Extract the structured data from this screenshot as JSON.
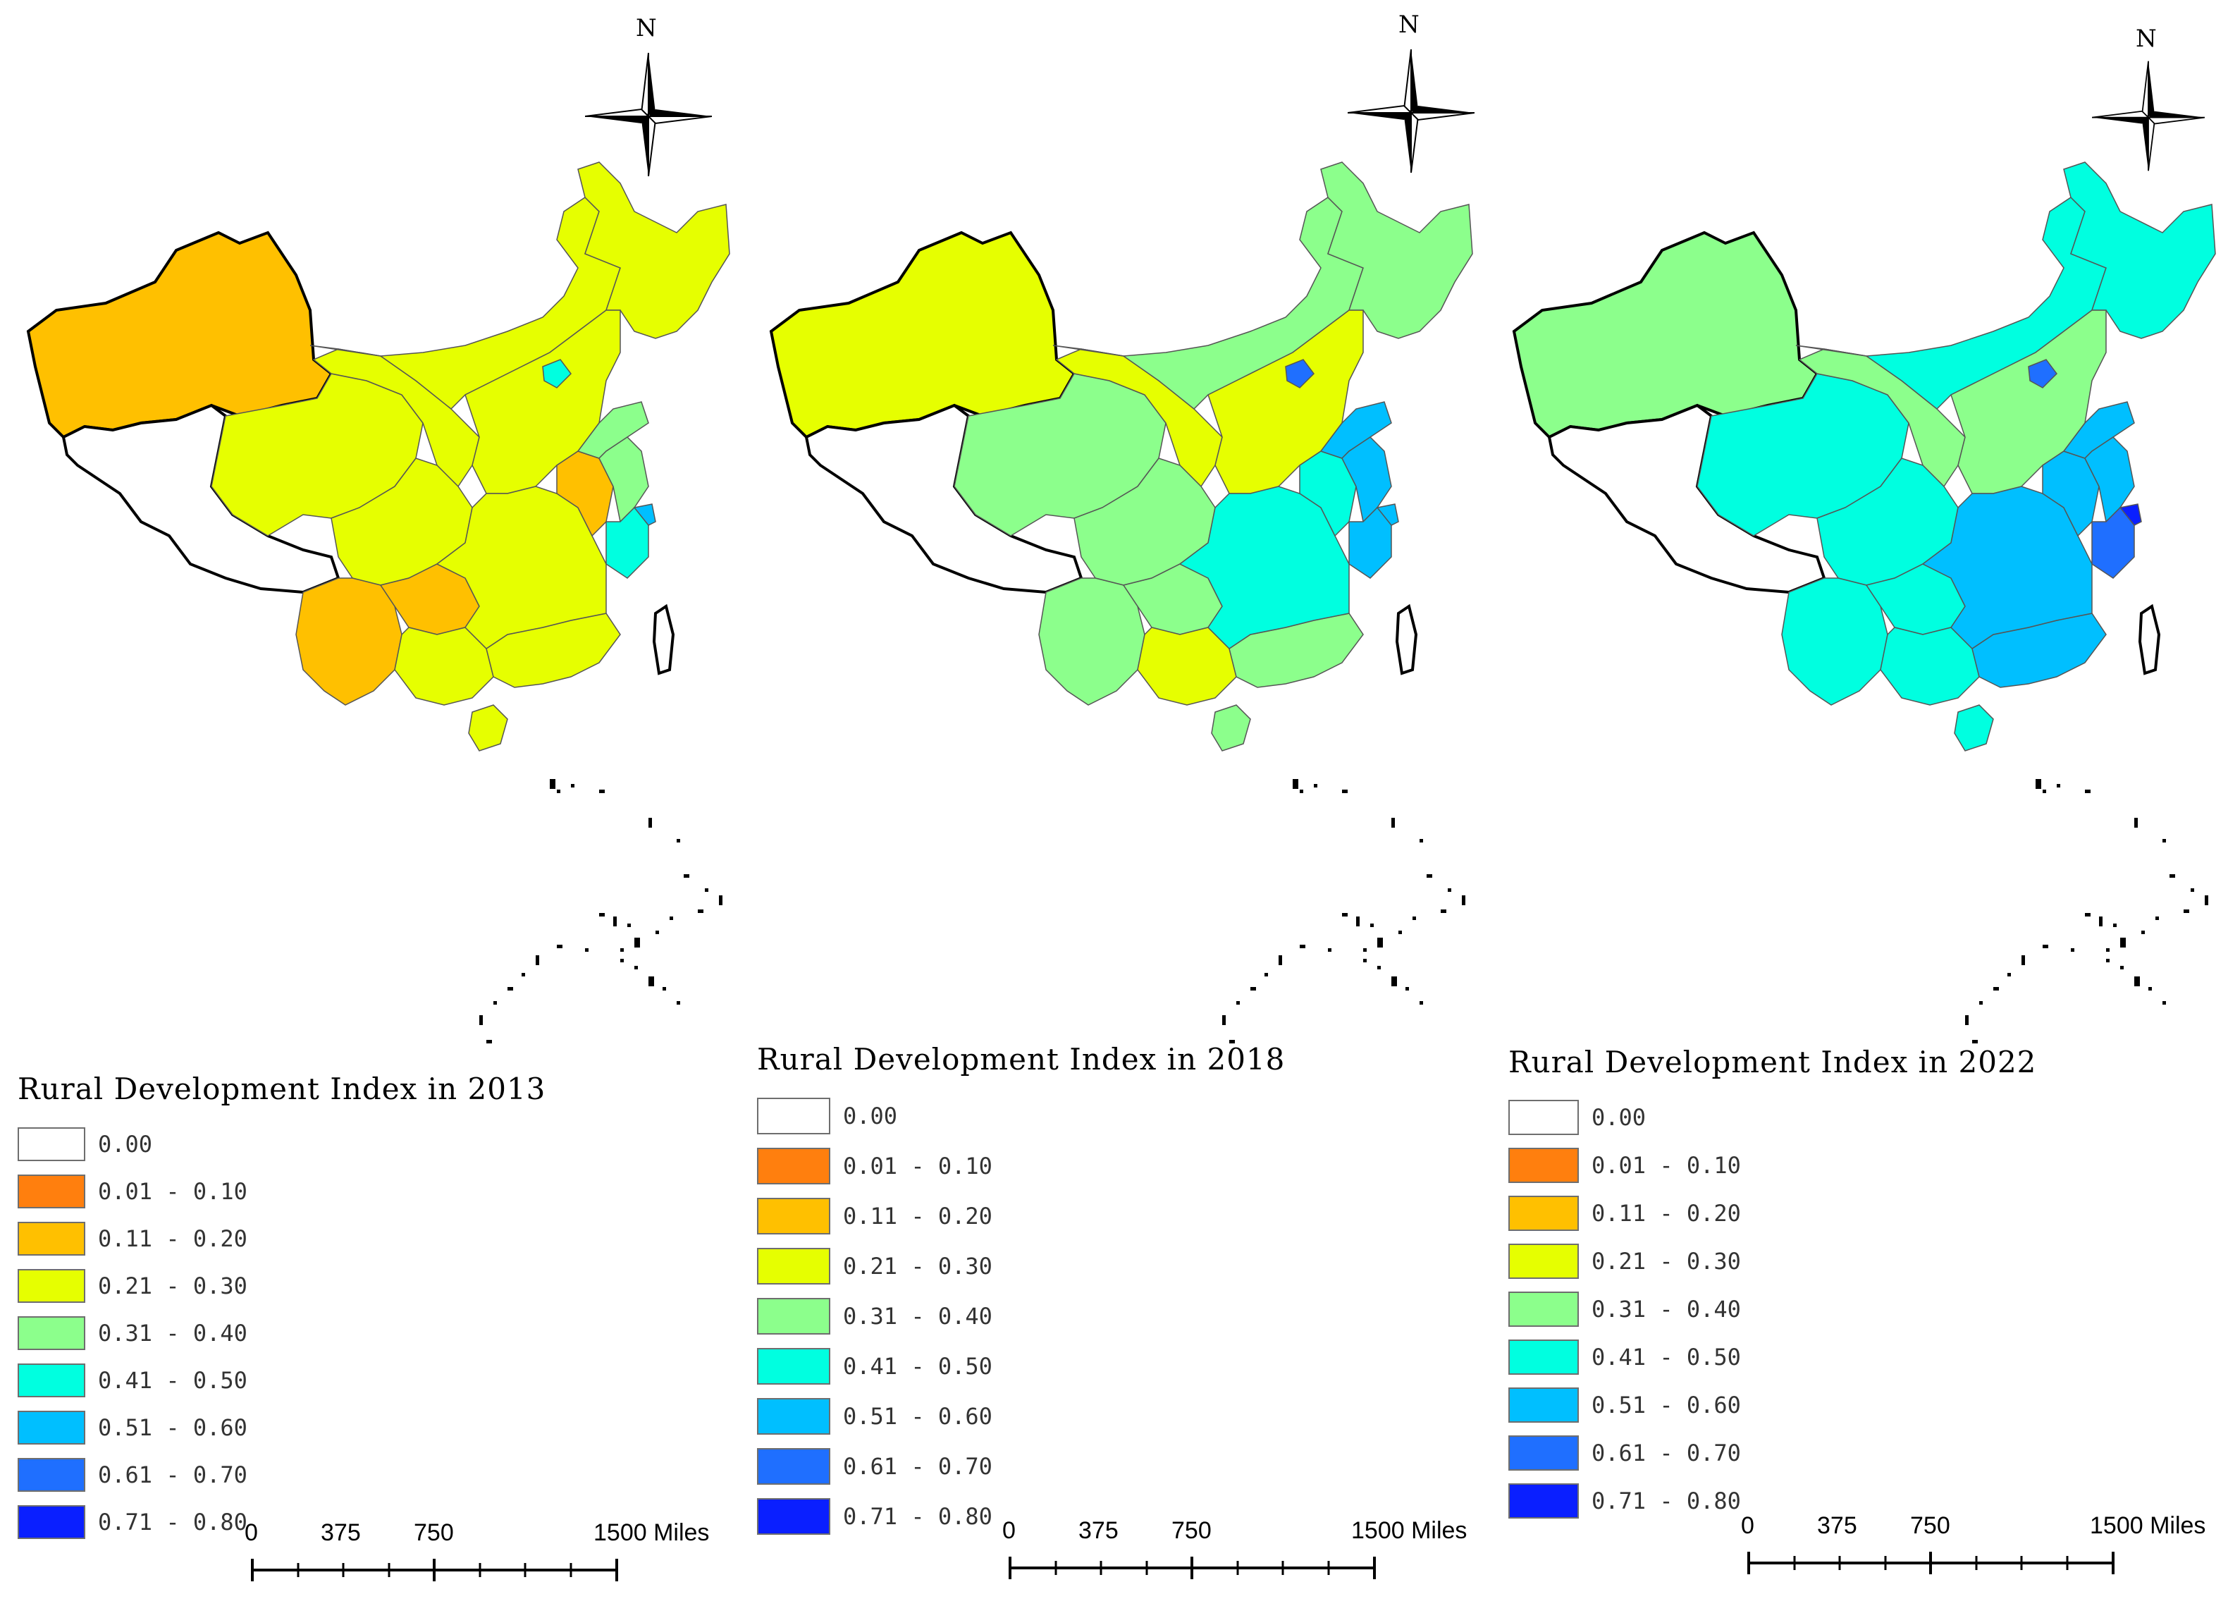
{
  "colors": {
    "c0": "#ffffff",
    "c1": "#ff7f0e",
    "c2": "#ffc000",
    "c3": "#e6ff00",
    "c4": "#8cff8c",
    "c5": "#00ffe0",
    "c6": "#00bfff",
    "c7": "#1f6fff",
    "c8": "#0a1fff"
  },
  "legend_ranges": [
    "0.00",
    "0.01 - 0.10",
    "0.11 - 0.20",
    "0.21 - 0.30",
    "0.31 - 0.40",
    "0.41 - 0.50",
    "0.51 - 0.60",
    "0.61 - 0.70",
    "0.71 - 0.80"
  ],
  "compass_label": "N",
  "scale": {
    "t0": "0",
    "t1": "375",
    "t2": "750",
    "t3": "1500 Miles"
  },
  "maps": [
    {
      "year": "2013",
      "title": "Rural Development Index in 2013",
      "regions": {
        "xinjiang": 2,
        "tibet": 0,
        "qinghai": 3,
        "gansu": 3,
        "inner_mongolia": 3,
        "northeast": 3,
        "north_china": 3,
        "sichuan": 3,
        "yunnan": 2,
        "guizhou": 2,
        "guangxi": 3,
        "south_china": 3,
        "central": 3,
        "anhui": 2,
        "shandong": 4,
        "jiangsu": 4,
        "zhejiang": 5,
        "shanghai": 6,
        "beijing": 5,
        "hainan": 3,
        "taiwan": 0
      }
    },
    {
      "year": "2018",
      "title": "Rural Development Index in 2018",
      "regions": {
        "xinjiang": 3,
        "tibet": 0,
        "qinghai": 4,
        "gansu": 3,
        "inner_mongolia": 4,
        "northeast": 4,
        "north_china": 3,
        "sichuan": 4,
        "yunnan": 4,
        "guizhou": 4,
        "guangxi": 3,
        "south_china": 4,
        "central": 5,
        "anhui": 5,
        "shandong": 6,
        "jiangsu": 6,
        "zhejiang": 6,
        "shanghai": 6,
        "beijing": 7,
        "hainan": 4,
        "taiwan": 0
      }
    },
    {
      "year": "2022",
      "title": "Rural Development Index in 2022",
      "regions": {
        "xinjiang": 4,
        "tibet": 0,
        "qinghai": 5,
        "gansu": 4,
        "inner_mongolia": 5,
        "northeast": 5,
        "north_china": 4,
        "sichuan": 5,
        "yunnan": 5,
        "guizhou": 5,
        "guangxi": 5,
        "south_china": 6,
        "central": 6,
        "anhui": 6,
        "shandong": 6,
        "jiangsu": 6,
        "zhejiang": 7,
        "shanghai": 8,
        "beijing": 7,
        "hainan": 5,
        "taiwan": 0
      }
    }
  ]
}
